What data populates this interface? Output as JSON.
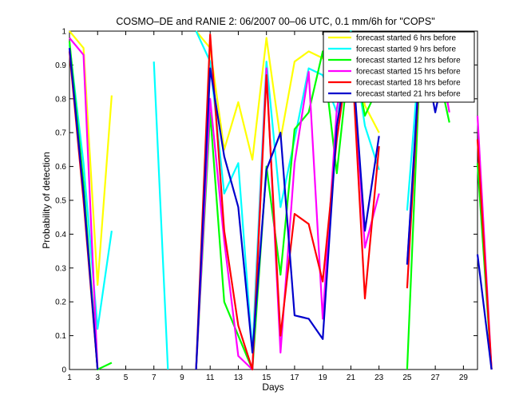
{
  "chart_data": {
    "type": "line",
    "title": "COSMO–DE and RANIE 2: 06/2007 00–06 UTC, 0.1 mm/6h for \"COPS\"",
    "xlabel": "Days",
    "ylabel": "Probability of detection",
    "xlim": [
      1,
      30
    ],
    "ylim": [
      0,
      1
    ],
    "xticks": [
      1,
      3,
      5,
      7,
      9,
      11,
      13,
      15,
      17,
      19,
      21,
      23,
      25,
      27,
      29
    ],
    "yticks": [
      0,
      0.1,
      0.2,
      0.3,
      0.4,
      0.5,
      0.6,
      0.7,
      0.8,
      0.9,
      1
    ],
    "grid": false,
    "legend_position": "top-right",
    "x": [
      1,
      2,
      3,
      4,
      5,
      6,
      7,
      8,
      9,
      10,
      11,
      12,
      13,
      14,
      15,
      16,
      17,
      18,
      19,
      20,
      21,
      22,
      23,
      24,
      25,
      26,
      27,
      28,
      29,
      30,
      31
    ],
    "series": [
      {
        "name": "forecast started 6 hrs before",
        "color": "#ffff00",
        "values": [
          1.0,
          0.95,
          0.25,
          0.81,
          null,
          null,
          null,
          null,
          null,
          1.0,
          0.95,
          0.65,
          0.79,
          0.62,
          0.98,
          0.68,
          0.91,
          0.94,
          0.92,
          0.88,
          1.0,
          0.78,
          0.7,
          null,
          0.91,
          0.97,
          0.97,
          0.97,
          null,
          0.25,
          null
        ]
      },
      {
        "name": "forecast started 9 hrs before",
        "color": "#00ffff",
        "values": [
          0.96,
          0.61,
          0.12,
          0.41,
          null,
          null,
          0.91,
          0.0,
          null,
          1.0,
          0.91,
          0.52,
          0.61,
          0.05,
          0.91,
          0.48,
          0.68,
          0.89,
          0.87,
          0.76,
          1.0,
          0.72,
          0.59,
          null,
          0.47,
          0.99,
          0.94,
          0.98,
          null,
          0.32,
          null
        ]
      },
      {
        "name": "forecast started 12 hrs before",
        "color": "#00ff00",
        "values": [
          0.97,
          0.55,
          0.0,
          0.02,
          null,
          null,
          null,
          null,
          null,
          0.0,
          0.76,
          0.2,
          0.1,
          0.0,
          0.6,
          0.28,
          0.71,
          0.76,
          0.94,
          0.58,
          0.97,
          0.75,
          0.84,
          null,
          0.0,
          0.99,
          0.92,
          0.73,
          null,
          0.61,
          0.0
        ]
      },
      {
        "name": "forecast started 15 hrs before",
        "color": "#ff00ff",
        "values": [
          0.98,
          0.93,
          0.0,
          null,
          null,
          null,
          null,
          null,
          null,
          0.0,
          0.8,
          0.38,
          0.04,
          0.0,
          0.89,
          0.05,
          0.61,
          0.88,
          0.15,
          0.77,
          0.99,
          0.36,
          0.52,
          null,
          0.31,
          0.95,
          0.99,
          0.76,
          null,
          0.75,
          0.0
        ]
      },
      {
        "name": "forecast started 18 hrs before",
        "color": "#ff0000",
        "values": [
          0.94,
          0.5,
          0.0,
          null,
          null,
          null,
          null,
          null,
          null,
          0.0,
          0.99,
          0.41,
          0.13,
          0.0,
          0.87,
          0.1,
          0.46,
          0.43,
          0.26,
          0.68,
          0.98,
          0.21,
          0.66,
          null,
          0.24,
          0.98,
          0.89,
          0.96,
          null,
          0.68,
          0.0
        ]
      },
      {
        "name": "forecast started 21 hrs before",
        "color": "#0000cc",
        "values": [
          0.95,
          0.52,
          0.0,
          null,
          null,
          null,
          null,
          null,
          null,
          0.0,
          0.89,
          0.63,
          0.48,
          0.05,
          0.59,
          0.7,
          0.16,
          0.15,
          0.09,
          0.72,
          0.98,
          0.41,
          0.69,
          null,
          0.31,
          0.98,
          0.76,
          0.96,
          null,
          0.34,
          0.0
        ]
      }
    ]
  }
}
